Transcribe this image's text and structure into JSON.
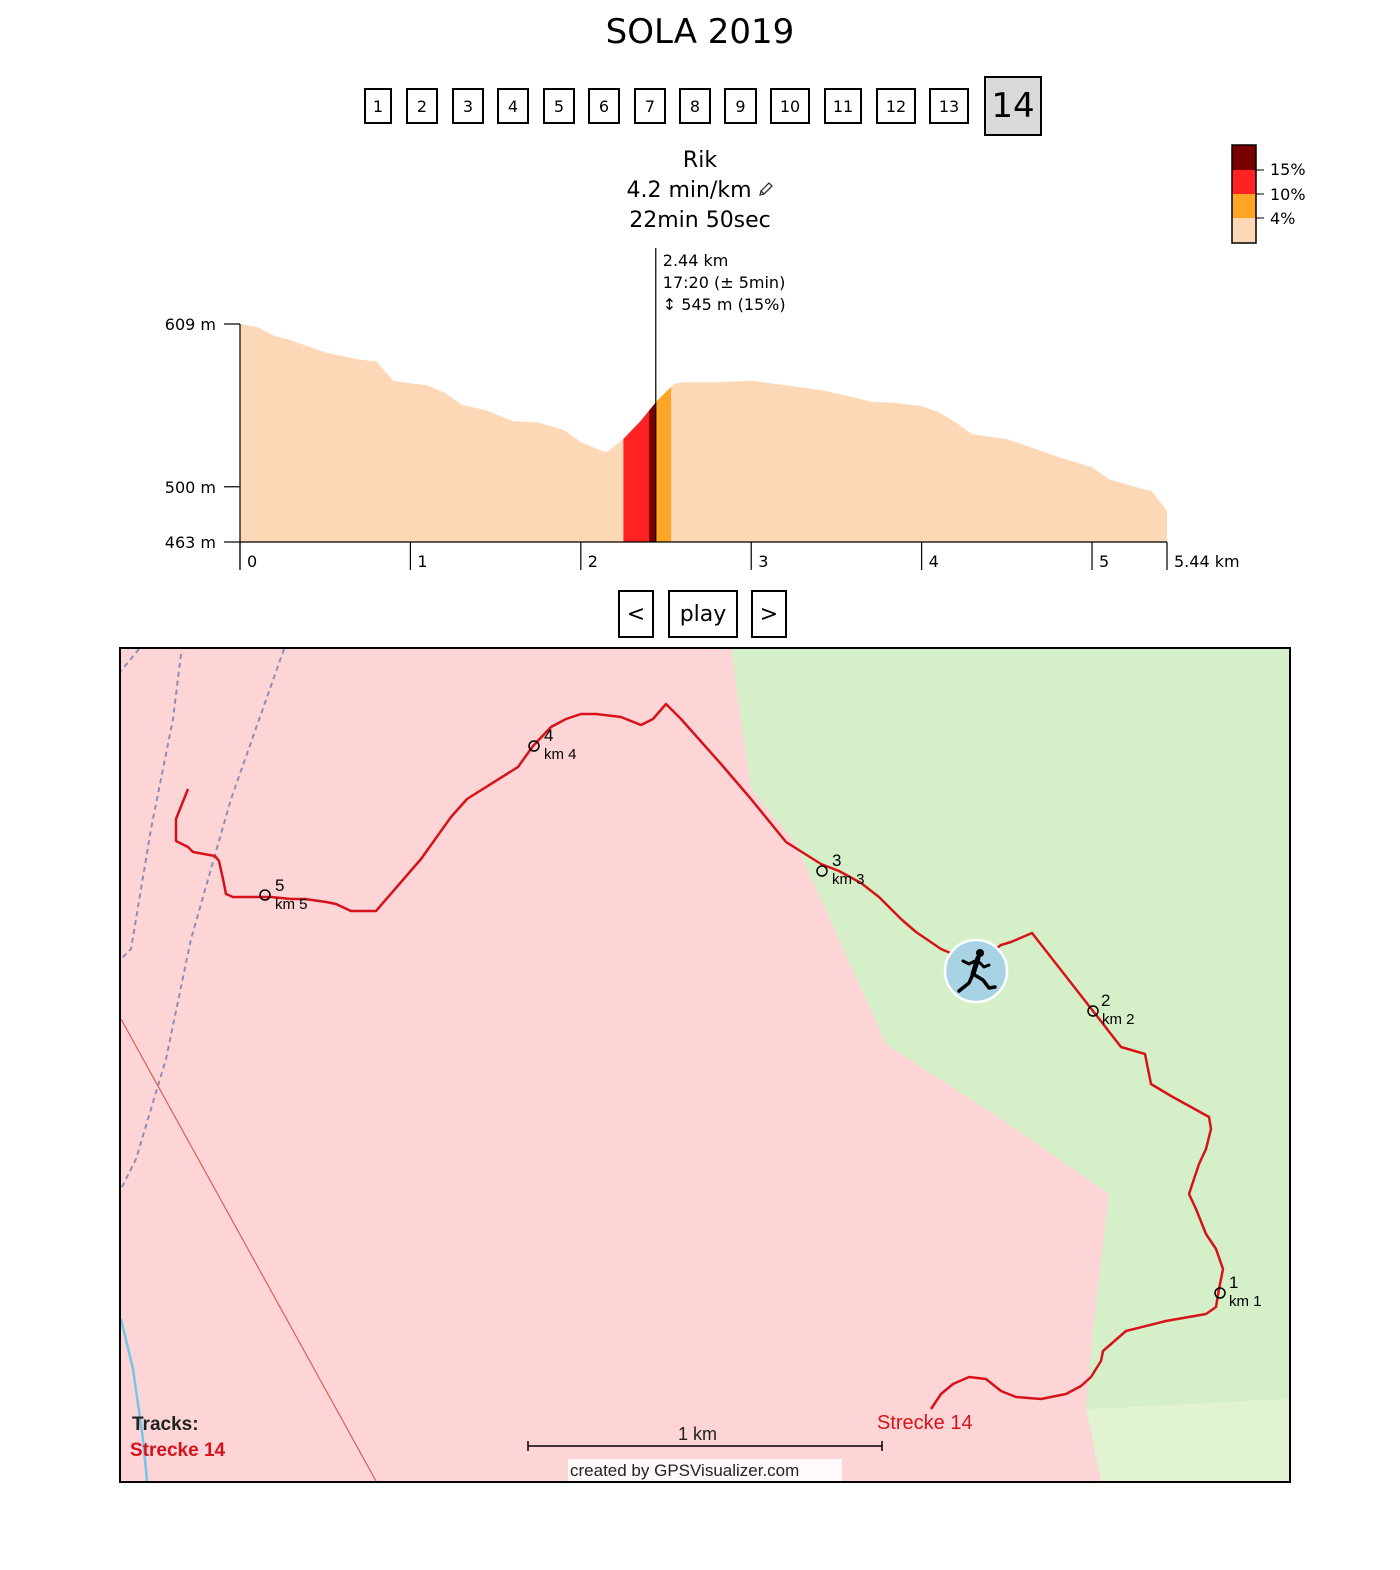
{
  "page": {
    "title": "SOLA 2019"
  },
  "stages": {
    "items": [
      "1",
      "2",
      "3",
      "4",
      "5",
      "6",
      "7",
      "8",
      "9",
      "10",
      "11",
      "12",
      "13",
      "14"
    ],
    "selected": "14"
  },
  "runner": {
    "name": "Rik",
    "pace": "4.2 min/km",
    "time": "22min 50sec"
  },
  "gradient_legend": {
    "colors": [
      "#7a0000",
      "#ff2222",
      "#ffa525",
      "#fdd8b6"
    ],
    "labels": [
      "15%",
      "10%",
      "4%"
    ]
  },
  "chart_data": {
    "type": "area",
    "title": "",
    "xlabel": "",
    "ylabel": "",
    "x_unit": "km",
    "y_unit": "m",
    "xlim": [
      0,
      5.44
    ],
    "ylim": [
      463,
      609
    ],
    "x_ticks": [
      "0",
      "1",
      "2",
      "3",
      "4",
      "5"
    ],
    "x_end_label": "5.44 km",
    "y_ticks": [
      "609 m",
      "500 m",
      "463 m"
    ],
    "fill_color": "#fdd8b6",
    "series": [
      {
        "x": [
          0,
          0.1,
          0.2,
          0.3,
          0.5,
          0.7,
          0.8,
          0.9,
          0.95,
          1.1,
          1.2,
          1.3,
          1.45,
          1.6,
          1.75,
          1.9,
          2.0,
          2.1,
          2.15,
          2.25,
          2.35,
          2.45,
          2.55,
          2.6,
          2.8,
          3.0,
          3.2,
          3.4,
          3.6,
          3.7,
          3.85,
          4.0,
          4.1,
          4.2,
          4.3,
          4.5,
          4.65,
          4.8,
          5.0,
          5.1,
          5.25,
          5.35,
          5.44
        ],
        "y": [
          609,
          607,
          601,
          598,
          590,
          585,
          584,
          571,
          570,
          568,
          563,
          555,
          551,
          544,
          543,
          538,
          530,
          525,
          523,
          532,
          544,
          558,
          569,
          570,
          570,
          571,
          568,
          565,
          560,
          557,
          556,
          554,
          550,
          543,
          535,
          532,
          526,
          520,
          513,
          505,
          500,
          497,
          484
        ]
      }
    ],
    "highlight_segments": [
      {
        "from": 2.25,
        "to": 2.4,
        "grade": "10%",
        "color": "#ff2222"
      },
      {
        "from": 2.4,
        "to": 2.44,
        "grade": "15%",
        "color": "#7a0000"
      },
      {
        "from": 2.44,
        "to": 2.53,
        "grade": "4%",
        "color": "#ffa525"
      }
    ],
    "cursor": {
      "x": 2.44,
      "distance": "2.44 km",
      "time": "17:20 (± 5min)",
      "elevation": "↕ 545 m (15%)"
    }
  },
  "controls": {
    "prev": "<",
    "play": "play",
    "next": ">"
  },
  "map": {
    "km_markers": [
      {
        "num": "1",
        "label": "km 1"
      },
      {
        "num": "2",
        "label": "km 2"
      },
      {
        "num": "3",
        "label": "km 3"
      },
      {
        "num": "4",
        "label": "km 4"
      },
      {
        "num": "5",
        "label": "km 5"
      }
    ],
    "track_name": "Strecke 14",
    "legend_title": "Tracks:",
    "legend_track": "Strecke 14",
    "scale_label": "1 km",
    "credit": "created by GPSVisualizer.com",
    "track_color": "#d6131a"
  }
}
